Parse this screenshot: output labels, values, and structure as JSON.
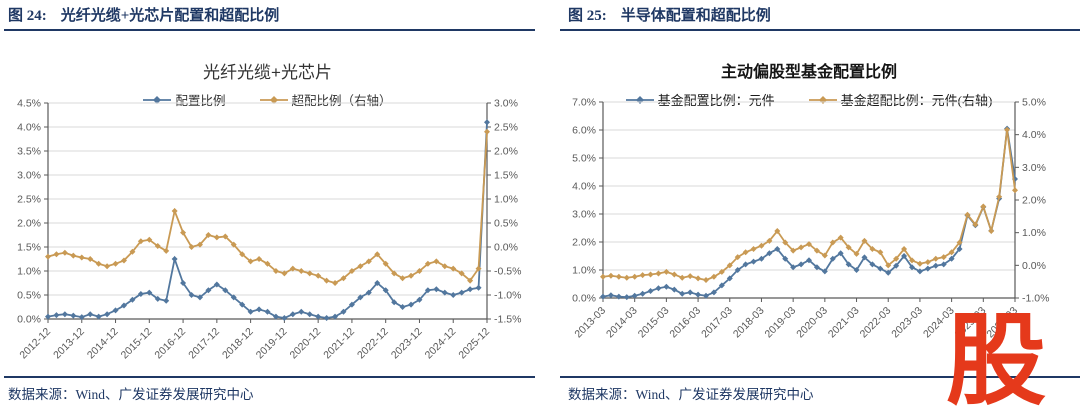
{
  "watermark": {
    "text": "股",
    "color": "#E5391B"
  },
  "colors": {
    "header_navy": "#1F3864",
    "series_blue": "#52779E",
    "series_orange": "#C99A54",
    "grid": "#D9D9D9",
    "axis": "#595959",
    "watermark_red": "#E5391B"
  },
  "panels": [
    {
      "figure_label": "图 24:",
      "figure_title": "光纤光缆+光芯片配置和超配比例",
      "chart_title": "光纤光缆+光芯片",
      "source": "数据来源：Wind、广发证券发展研究中心",
      "chart_data": {
        "type": "line",
        "title": "光纤光缆+光芯片",
        "legend_position": "top-center",
        "grid": true,
        "left_axis": {
          "min": 0.0,
          "max": 4.5,
          "ticks": [
            "4.5%",
            "4.0%",
            "3.5%",
            "3.0%",
            "2.5%",
            "2.0%",
            "1.5%",
            "1.0%",
            "0.5%",
            "0.0%"
          ]
        },
        "right_axis": {
          "min": -1.5,
          "max": 3.0,
          "ticks": [
            "3.0%",
            "2.5%",
            "2.0%",
            "1.5%",
            "1.0%",
            "0.5%",
            "0.0%",
            "-0.5%",
            "-1.0%",
            "-1.5%"
          ]
        },
        "x_tick_labels": [
          "2012-12",
          "2013-12",
          "2014-12",
          "2015-12",
          "2016-12",
          "2017-12",
          "2018-12",
          "2019-12",
          "2020-12",
          "2021-12",
          "2022-12",
          "2023-12",
          "2024-12",
          "2025-12"
        ],
        "x": [
          "2012-12",
          "2013-03",
          "2013-06",
          "2013-09",
          "2013-12",
          "2014-03",
          "2014-06",
          "2014-09",
          "2014-12",
          "2015-03",
          "2015-06",
          "2015-09",
          "2015-12",
          "2016-03",
          "2016-06",
          "2016-09",
          "2016-12",
          "2017-03",
          "2017-06",
          "2017-09",
          "2017-12",
          "2018-03",
          "2018-06",
          "2018-09",
          "2018-12",
          "2019-03",
          "2019-06",
          "2019-09",
          "2019-12",
          "2020-03",
          "2020-06",
          "2020-09",
          "2020-12",
          "2021-03",
          "2021-06",
          "2021-09",
          "2021-12",
          "2022-03",
          "2022-06",
          "2022-09",
          "2022-12",
          "2023-03",
          "2023-06",
          "2023-09",
          "2023-12",
          "2024-03",
          "2024-06",
          "2024-09",
          "2024-12",
          "2025-03",
          "2025-06",
          "2025-09",
          "2025-12"
        ],
        "series": [
          {
            "name": "配置比例",
            "axis": "left",
            "color": "#52779E",
            "unit": "%",
            "values": [
              0.05,
              0.08,
              0.1,
              0.07,
              0.04,
              0.1,
              0.05,
              0.1,
              0.18,
              0.28,
              0.4,
              0.52,
              0.55,
              0.42,
              0.38,
              1.25,
              0.75,
              0.5,
              0.45,
              0.6,
              0.72,
              0.6,
              0.45,
              0.3,
              0.15,
              0.2,
              0.15,
              0.05,
              0.02,
              0.1,
              0.15,
              0.1,
              0.05,
              0.02,
              0.05,
              0.15,
              0.3,
              0.45,
              0.55,
              0.75,
              0.6,
              0.35,
              0.25,
              0.3,
              0.4,
              0.6,
              0.62,
              0.55,
              0.5,
              0.55,
              0.62,
              0.65,
              4.1
            ]
          },
          {
            "name": "超配比例（右轴）",
            "axis": "right",
            "color": "#C99A54",
            "unit": "%",
            "values": [
              -0.2,
              -0.15,
              -0.12,
              -0.18,
              -0.22,
              -0.25,
              -0.35,
              -0.4,
              -0.35,
              -0.28,
              -0.1,
              0.12,
              0.15,
              0.02,
              -0.08,
              0.75,
              0.3,
              0.0,
              0.05,
              0.25,
              0.2,
              0.22,
              0.05,
              -0.15,
              -0.3,
              -0.25,
              -0.35,
              -0.5,
              -0.55,
              -0.45,
              -0.5,
              -0.55,
              -0.6,
              -0.7,
              -0.75,
              -0.65,
              -0.5,
              -0.4,
              -0.3,
              -0.15,
              -0.35,
              -0.55,
              -0.65,
              -0.6,
              -0.5,
              -0.35,
              -0.3,
              -0.4,
              -0.45,
              -0.55,
              -0.7,
              -0.45,
              2.4
            ]
          }
        ]
      }
    },
    {
      "figure_label": "图 25:",
      "figure_title": "半导体配置和超配比例",
      "chart_title": "主动偏股型基金配置比例",
      "source": "数据来源：Wind、广发证券发展研究中心",
      "chart_data": {
        "type": "line",
        "title": "主动偏股型基金配置比例",
        "legend_position": "top-center",
        "grid": true,
        "left_axis": {
          "min": 0.0,
          "max": 7.0,
          "ticks": [
            "7.0%",
            "6.0%",
            "5.0%",
            "4.0%",
            "3.0%",
            "2.0%",
            "1.0%",
            "0.0%"
          ]
        },
        "right_axis": {
          "min": -1.0,
          "max": 5.0,
          "ticks": [
            "5.0%",
            "4.0%",
            "3.0%",
            "2.0%",
            "1.0%",
            "0.0%",
            "-1.0%"
          ]
        },
        "x_tick_labels": [
          "2013-03",
          "2014-03",
          "2015-03",
          "2016-03",
          "2017-03",
          "2018-03",
          "2019-03",
          "2020-03",
          "2021-03",
          "2022-03",
          "2023-03",
          "2024-03",
          "2025-03",
          "2026-03"
        ],
        "x": [
          "2013-03",
          "2013-06",
          "2013-09",
          "2013-12",
          "2014-03",
          "2014-06",
          "2014-09",
          "2014-12",
          "2015-03",
          "2015-06",
          "2015-09",
          "2015-12",
          "2016-03",
          "2016-06",
          "2016-09",
          "2016-12",
          "2017-03",
          "2017-06",
          "2017-09",
          "2017-12",
          "2018-03",
          "2018-06",
          "2018-09",
          "2018-12",
          "2019-03",
          "2019-06",
          "2019-09",
          "2019-12",
          "2020-03",
          "2020-06",
          "2020-09",
          "2020-12",
          "2021-03",
          "2021-06",
          "2021-09",
          "2021-12",
          "2022-03",
          "2022-06",
          "2022-09",
          "2022-12",
          "2023-03",
          "2023-06",
          "2023-09",
          "2023-12",
          "2024-03",
          "2024-06",
          "2024-09",
          "2024-12",
          "2025-03",
          "2025-06",
          "2025-09",
          "2025-12",
          "2026-03"
        ],
        "series": [
          {
            "name": "基金配置比例：元件",
            "axis": "left",
            "color": "#52779E",
            "unit": "%",
            "values": [
              0.05,
              0.1,
              0.05,
              0.03,
              0.08,
              0.15,
              0.25,
              0.35,
              0.4,
              0.3,
              0.15,
              0.2,
              0.12,
              0.08,
              0.2,
              0.45,
              0.7,
              1.0,
              1.2,
              1.3,
              1.4,
              1.6,
              1.75,
              1.4,
              1.1,
              1.2,
              1.35,
              1.1,
              0.95,
              1.4,
              1.6,
              1.2,
              1.0,
              1.45,
              1.2,
              1.05,
              0.9,
              1.15,
              1.5,
              1.1,
              0.95,
              1.05,
              1.15,
              1.2,
              1.4,
              1.75,
              2.95,
              2.6,
              3.25,
              2.4,
              3.55,
              6.05,
              4.25
            ]
          },
          {
            "name": "基金超配比例：元件(右轴)",
            "axis": "right",
            "color": "#C99A54",
            "unit": "%",
            "values": [
              -0.35,
              -0.32,
              -0.35,
              -0.38,
              -0.35,
              -0.3,
              -0.28,
              -0.25,
              -0.2,
              -0.28,
              -0.38,
              -0.33,
              -0.4,
              -0.45,
              -0.35,
              -0.2,
              0.0,
              0.25,
              0.4,
              0.5,
              0.6,
              0.75,
              1.05,
              0.7,
              0.45,
              0.55,
              0.65,
              0.45,
              0.3,
              0.7,
              0.85,
              0.55,
              0.35,
              0.75,
              0.5,
              0.4,
              0.0,
              0.2,
              0.5,
              0.15,
              0.05,
              0.1,
              0.2,
              0.25,
              0.4,
              0.7,
              1.55,
              1.25,
              1.8,
              1.05,
              2.1,
              4.15,
              2.3
            ]
          }
        ]
      }
    }
  ]
}
